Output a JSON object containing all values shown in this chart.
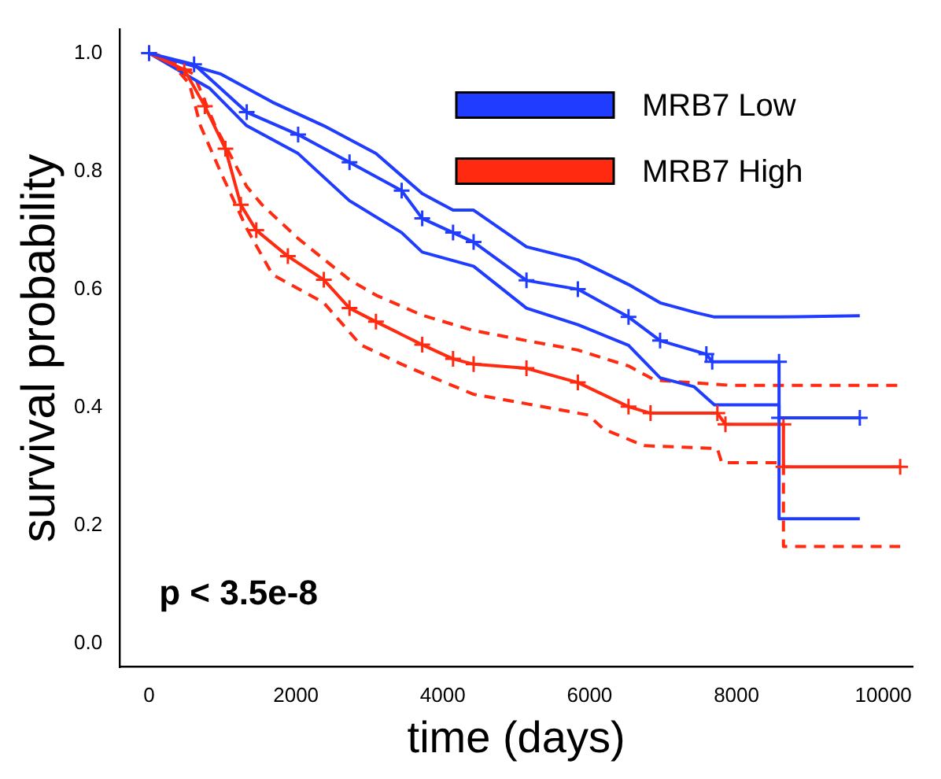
{
  "chart_data": {
    "type": "line",
    "xlabel": "time (days)",
    "ylabel": "survival probability",
    "xlim": [
      -400,
      10400
    ],
    "xticks": [
      0,
      2000,
      4000,
      6000,
      8000,
      10000
    ],
    "ylim": [
      -0.04,
      1.04
    ],
    "yticks": [
      {
        "value": 0,
        "label": "0.0"
      },
      0.2,
      0.4,
      0.6,
      0.8,
      {
        "value": 1,
        "label": "1.0"
      }
    ],
    "grid": false,
    "legend": "top right",
    "annotations": [
      "p < 3.5e-8"
    ],
    "series": [
      {
        "name": "MRB7 Low",
        "color": "#1f3cff",
        "marker": "cross",
        "line_style": "solid",
        "x": [
          0,
          613,
          1330,
          2030,
          2730,
          3440,
          3720,
          4140,
          4420,
          5140,
          5840,
          6530,
          6960,
          7590,
          7670,
          8580,
          8580,
          9680
        ],
        "values": [
          1.0,
          0.981,
          0.9,
          0.862,
          0.815,
          0.767,
          0.72,
          0.696,
          0.68,
          0.615,
          0.6,
          0.553,
          0.513,
          0.49,
          0.477,
          0.477,
          0.382,
          0.382
        ]
      },
      {
        "name": "MRB7 High",
        "color": "#ff2a10",
        "marker": "cross",
        "line_style": "solid",
        "x": [
          0,
          480,
          760,
          1040,
          1250,
          1460,
          1890,
          2380,
          2730,
          3090,
          3720,
          4140,
          4420,
          5140,
          5840,
          6530,
          6830,
          7740,
          7850,
          8640,
          8640,
          10230
        ],
        "values": [
          1.0,
          0.972,
          0.91,
          0.838,
          0.743,
          0.7,
          0.656,
          0.616,
          0.568,
          0.545,
          0.506,
          0.482,
          0.473,
          0.466,
          0.442,
          0.401,
          0.39,
          0.39,
          0.371,
          0.371,
          0.299,
          0.299
        ]
      },
      {
        "color": "#1f3cff",
        "marker": "none",
        "line_style": "solid",
        "x": [
          0,
          970,
          1680,
          2380,
          3090,
          3720,
          4140,
          4420,
          5140,
          5840,
          6530,
          6960,
          7460,
          7700,
          8580,
          9680
        ],
        "values": [
          1.0,
          0.965,
          0.917,
          0.877,
          0.83,
          0.762,
          0.734,
          0.734,
          0.672,
          0.65,
          0.608,
          0.577,
          0.56,
          0.553,
          0.553,
          0.555
        ]
      },
      {
        "color": "#1f3cff",
        "marker": "none",
        "line_style": "solid",
        "x": [
          0,
          830,
          1330,
          2030,
          2730,
          3440,
          3720,
          4420,
          5140,
          5840,
          6530,
          6960,
          7420,
          7700,
          8580,
          8580,
          9680
        ],
        "values": [
          1.0,
          0.94,
          0.877,
          0.83,
          0.75,
          0.696,
          0.663,
          0.639,
          0.568,
          0.54,
          0.505,
          0.45,
          0.435,
          0.404,
          0.404,
          0.211,
          0.211
        ]
      },
      {
        "color": "#ff2a10",
        "marker": "none",
        "line_style": "dashed",
        "x": [
          0,
          200,
          610,
          900,
          1330,
          1540,
          2030,
          2730,
          3090,
          3720,
          4420,
          5140,
          5840,
          6530,
          6890,
          7950,
          10230
        ],
        "values": [
          1.0,
          0.995,
          0.964,
          0.877,
          0.774,
          0.743,
          0.686,
          0.616,
          0.59,
          0.556,
          0.53,
          0.513,
          0.497,
          0.47,
          0.446,
          0.437,
          0.437
        ]
      },
      {
        "color": "#ff2a10",
        "marker": "none",
        "line_style": "dashed",
        "x": [
          0,
          270,
          550,
          700,
          970,
          1330,
          1680,
          2380,
          2880,
          3440,
          3720,
          4420,
          5140,
          5980,
          6190,
          6740,
          7740,
          7800,
          8640,
          8640,
          10230
        ],
        "values": [
          1.0,
          0.988,
          0.948,
          0.877,
          0.8,
          0.703,
          0.625,
          0.577,
          0.506,
          0.473,
          0.458,
          0.422,
          0.406,
          0.387,
          0.363,
          0.335,
          0.33,
          0.306,
          0.306,
          0.164,
          0.164
        ]
      }
    ]
  }
}
